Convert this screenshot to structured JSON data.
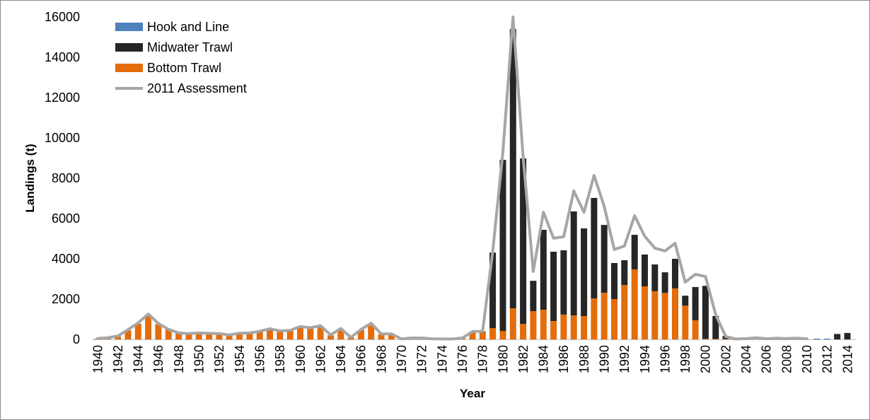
{
  "chart_data": {
    "type": "bar",
    "stacked": true,
    "title": "",
    "xlabel": "Year",
    "ylabel": "Landings (t)",
    "ylim": [
      0,
      16000
    ],
    "y_ticks": [
      0,
      2000,
      4000,
      6000,
      8000,
      10000,
      12000,
      14000,
      16000
    ],
    "x_tick_labels": [
      "1940",
      "1942",
      "1944",
      "1946",
      "1948",
      "1950",
      "1952",
      "1954",
      "1956",
      "1958",
      "1960",
      "1962",
      "1964",
      "1966",
      "1968",
      "1970",
      "1972",
      "1974",
      "1976",
      "1978",
      "1980",
      "1982",
      "1984",
      "1986",
      "1988",
      "1990",
      "1992",
      "1994",
      "1996",
      "1998",
      "2000",
      "2002",
      "2004",
      "2006",
      "2008",
      "2010",
      "2012",
      "2014"
    ],
    "grid": false,
    "legend": "top-left",
    "x": [
      1940,
      1941,
      1942,
      1943,
      1944,
      1945,
      1946,
      1947,
      1948,
      1949,
      1950,
      1951,
      1952,
      1953,
      1954,
      1955,
      1956,
      1957,
      1958,
      1959,
      1960,
      1961,
      1962,
      1963,
      1964,
      1965,
      1966,
      1967,
      1968,
      1969,
      1970,
      1971,
      1972,
      1973,
      1974,
      1975,
      1976,
      1977,
      1978,
      1979,
      1980,
      1981,
      1982,
      1983,
      1984,
      1985,
      1986,
      1987,
      1988,
      1989,
      1990,
      1991,
      1992,
      1993,
      1994,
      1995,
      1996,
      1997,
      1998,
      1999,
      2000,
      2001,
      2002,
      2003,
      2004,
      2005,
      2006,
      2007,
      2008,
      2009,
      2010,
      2011,
      2012,
      2013,
      2014
    ],
    "series": [
      {
        "name": "Hook and Line",
        "type": "bar",
        "color": "#4f81bd",
        "values": [
          0,
          0,
          0,
          0,
          0,
          0,
          0,
          0,
          0,
          0,
          0,
          0,
          0,
          0,
          0,
          0,
          0,
          0,
          0,
          0,
          0,
          0,
          0,
          0,
          0,
          0,
          0,
          0,
          0,
          0,
          0,
          0,
          0,
          0,
          0,
          0,
          0,
          0,
          0,
          0,
          0,
          0,
          0,
          0,
          0,
          0,
          0,
          0,
          0,
          0,
          0,
          0,
          0,
          0,
          0,
          0,
          0,
          0,
          0,
          0,
          0,
          0,
          0,
          0,
          0,
          0,
          0,
          0,
          0,
          0,
          0,
          40,
          40,
          0,
          0
        ]
      },
      {
        "name": "Midwater Trawl",
        "type": "bar",
        "color": "#262626",
        "values": [
          0,
          0,
          0,
          0,
          0,
          0,
          0,
          0,
          0,
          0,
          0,
          0,
          0,
          0,
          0,
          0,
          0,
          0,
          0,
          0,
          0,
          0,
          0,
          0,
          0,
          0,
          0,
          0,
          0,
          0,
          0,
          0,
          0,
          0,
          0,
          0,
          0,
          0,
          30,
          3750,
          8490,
          13860,
          8210,
          1510,
          3970,
          3440,
          3190,
          5160,
          4350,
          4990,
          3370,
          1790,
          1230,
          1720,
          1580,
          1330,
          1020,
          1470,
          490,
          1650,
          2630,
          1140,
          150,
          0,
          0,
          0,
          0,
          0,
          0,
          0,
          0,
          0,
          0,
          270,
          320
        ]
      },
      {
        "name": "Bottom Trawl",
        "type": "bar",
        "color": "#e46c0a",
        "values": [
          40,
          70,
          140,
          450,
          780,
          1220,
          760,
          490,
          300,
          270,
          300,
          280,
          280,
          210,
          300,
          300,
          380,
          500,
          400,
          420,
          610,
          560,
          660,
          200,
          520,
          90,
          470,
          770,
          260,
          260,
          20,
          50,
          60,
          30,
          20,
          20,
          60,
          370,
          360,
          560,
          420,
          1540,
          770,
          1400,
          1470,
          910,
          1230,
          1190,
          1160,
          2030,
          2310,
          2000,
          2700,
          3470,
          2630,
          2390,
          2310,
          2530,
          1680,
          950,
          30,
          20,
          20,
          10,
          10,
          10,
          10,
          10,
          10,
          10,
          10,
          0,
          0,
          0,
          0
        ]
      },
      {
        "name": "2011 Assessment",
        "type": "line",
        "color": "#a6a6a6",
        "values": [
          50,
          80,
          170,
          480,
          820,
          1260,
          790,
          500,
          320,
          290,
          320,
          300,
          290,
          220,
          310,
          320,
          400,
          530,
          420,
          450,
          640,
          580,
          680,
          220,
          540,
          100,
          490,
          800,
          270,
          270,
          20,
          70,
          70,
          30,
          20,
          20,
          70,
          390,
          400,
          4350,
          9300,
          16000,
          9050,
          3370,
          6310,
          5020,
          5090,
          7370,
          6310,
          8140,
          6600,
          4460,
          4630,
          6140,
          5120,
          4530,
          4390,
          4770,
          2840,
          3230,
          3120,
          1230,
          140,
          20,
          40,
          80,
          30,
          60,
          40,
          60,
          30,
          null,
          null,
          null,
          null
        ]
      }
    ]
  }
}
